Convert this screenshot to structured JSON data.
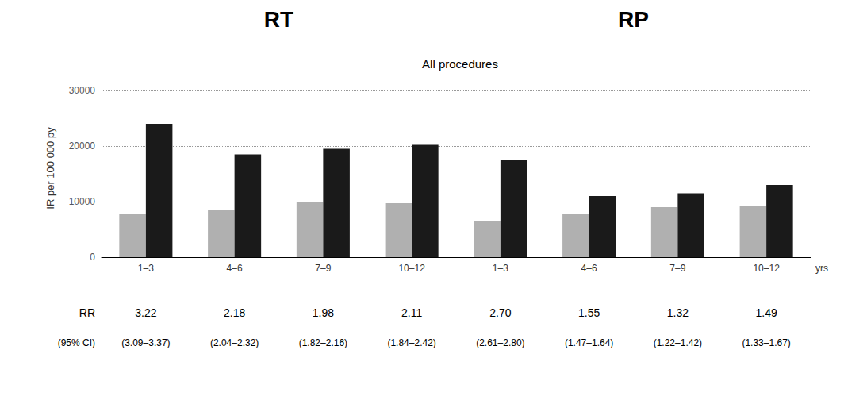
{
  "chart_data": {
    "type": "bar",
    "title": "All procedures",
    "ylabel": "IR per 100 000 py",
    "categories": [
      "1–3",
      "4–6",
      "7–9",
      "10–12",
      "1–3",
      "4–6",
      "7–9",
      "10–12"
    ],
    "series": [
      {
        "color": "#b0b0b0",
        "values": [
          7800,
          8500,
          10000,
          9700,
          6500,
          7800,
          9000,
          9200
        ]
      },
      {
        "color": "#1a1a1a",
        "values": [
          24000,
          18500,
          19500,
          20200,
          17500,
          11000,
          11500,
          13000
        ]
      }
    ],
    "ylim": [
      0,
      32000
    ],
    "yticks": [
      0,
      10000,
      20000,
      30000
    ],
    "grid": true,
    "annotations": {
      "groups": [
        "RT",
        "RP"
      ],
      "x_unit": "yrs",
      "rows": [
        {
          "label": "RR",
          "values": [
            "3.22",
            "2.18",
            "1.98",
            "2.11",
            "2.70",
            "1.55",
            "1.32",
            "1.49"
          ]
        },
        {
          "label": "(95% CI)",
          "values": [
            "(3.09–3.37)",
            "(2.04–2.32)",
            "(1.82–2.16)",
            "(1.84–2.42)",
            "(2.61–2.80)",
            "(1.47–1.64)",
            "(1.22–1.42)",
            "(1.33–1.67)"
          ]
        }
      ]
    }
  }
}
